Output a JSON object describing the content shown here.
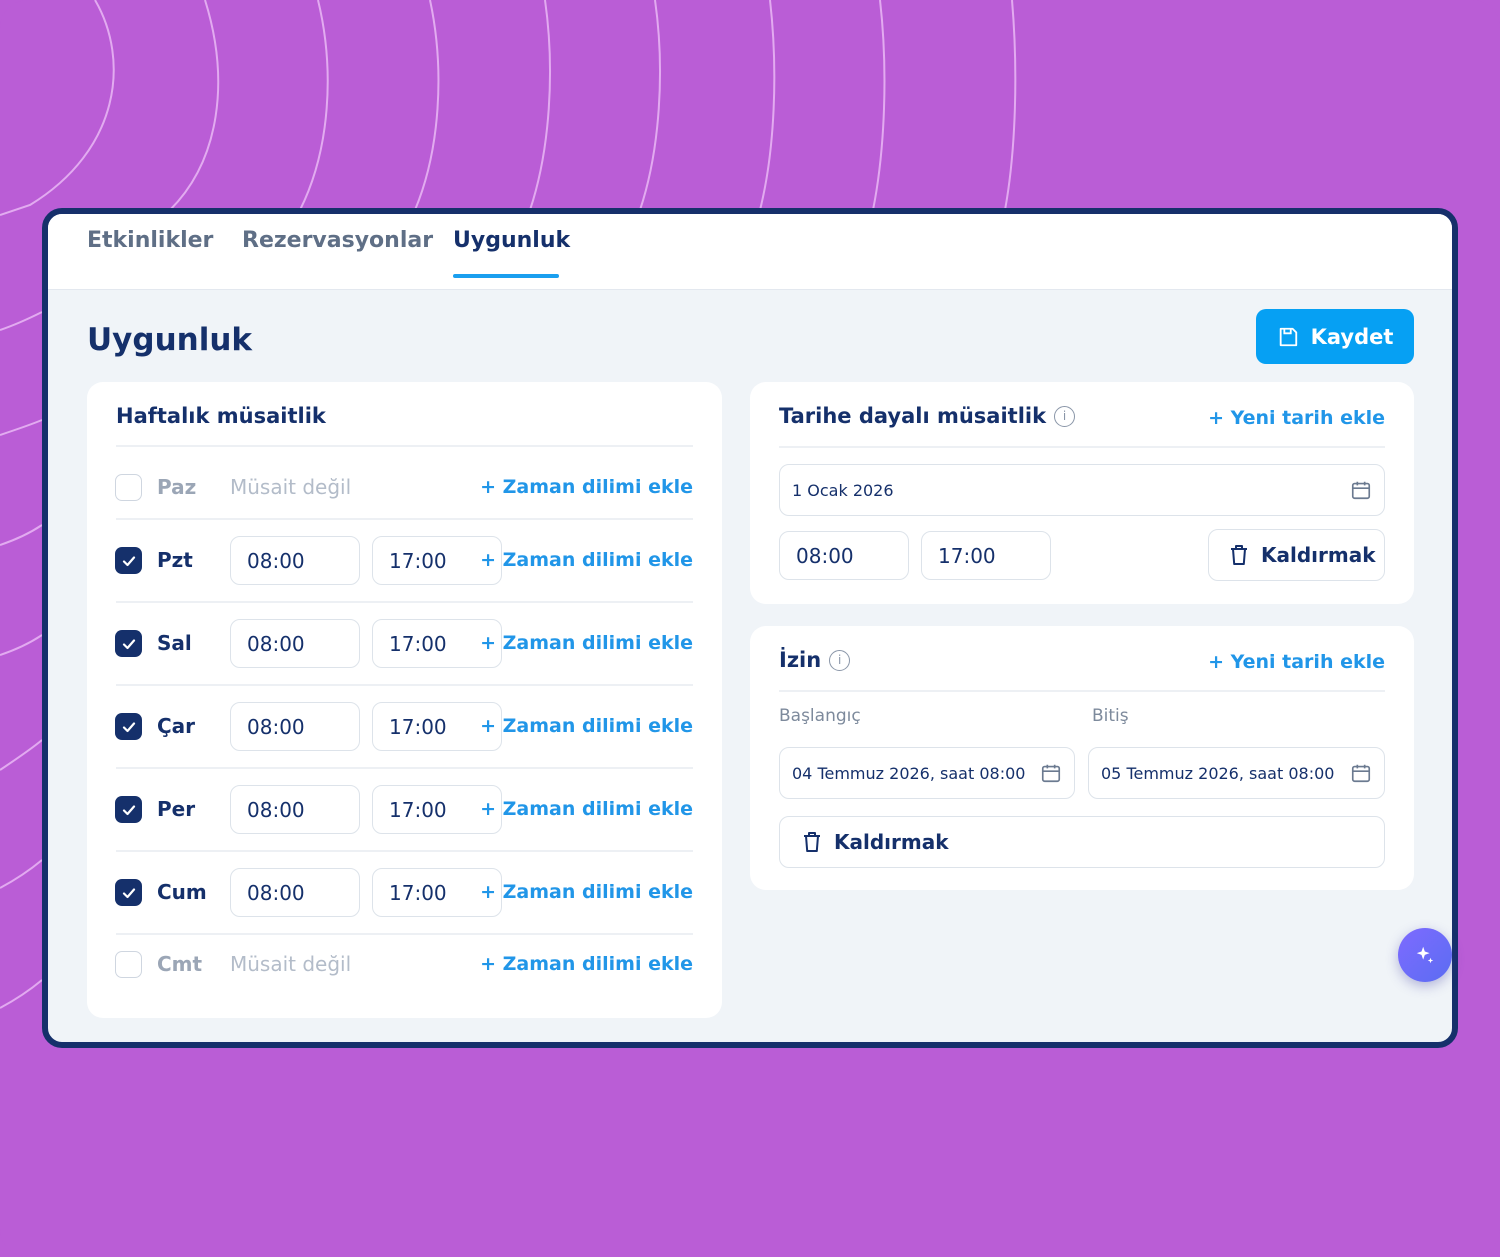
{
  "tabs": [
    {
      "label": "Etkinlikler"
    },
    {
      "label": "Rezervasyonlar"
    },
    {
      "label": "Uygunluk"
    }
  ],
  "page": {
    "title": "Uygunluk",
    "save_label": "Kaydet"
  },
  "weekly": {
    "title": "Haftalık müsaitlik",
    "add_slot_label": "+ Zaman dilimi ekle",
    "unavailable_label": "Müsait değil",
    "days": [
      {
        "name": "Paz",
        "enabled": false,
        "start": "",
        "end": ""
      },
      {
        "name": "Pzt",
        "enabled": true,
        "start": "08:00",
        "end": "17:00"
      },
      {
        "name": "Sal",
        "enabled": true,
        "start": "08:00",
        "end": "17:00"
      },
      {
        "name": "Çar",
        "enabled": true,
        "start": "08:00",
        "end": "17:00"
      },
      {
        "name": "Per",
        "enabled": true,
        "start": "08:00",
        "end": "17:00"
      },
      {
        "name": "Cum",
        "enabled": true,
        "start": "08:00",
        "end": "17:00"
      },
      {
        "name": "Cmt",
        "enabled": false,
        "start": "",
        "end": ""
      }
    ]
  },
  "date_based": {
    "title": "Tarihe dayalı müsaitlik",
    "add_label": "+ Yeni tarih ekle",
    "date": "1 Ocak 2026",
    "start": "08:00",
    "end": "17:00",
    "remove_label": "Kaldırmak"
  },
  "leave": {
    "title": "İzin",
    "add_label": "+ Yeni tarih ekle",
    "start_label": "Başlangıç",
    "end_label": "Bitiş",
    "start_value": "04 Temmuz 2026, saat 08:00",
    "end_value": "05 Temmuz 2026, saat 08:00",
    "remove_label": "Kaldırmak"
  },
  "colors": {
    "background": "#ba5dd6",
    "navy": "#15306b",
    "accent_blue": "#06a0f3",
    "link_blue": "#2196e8"
  }
}
